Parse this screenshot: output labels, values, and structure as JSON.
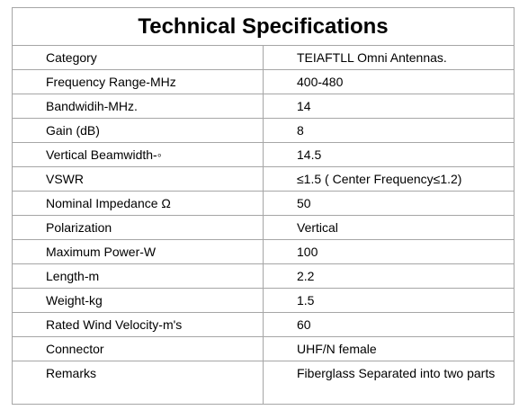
{
  "title": "Technical Specifications",
  "rows": [
    {
      "label": "Category",
      "value": "TEIAFTLL Omni Antennas."
    },
    {
      "label": "Frequency Range-MHz",
      "value": "400-480"
    },
    {
      "label": "Bandwidih-MHz.",
      "value": "14"
    },
    {
      "label": "Gain (dB)",
      "value": "8"
    },
    {
      "label": "Vertical Beamwidth-◦",
      "value": "14.5"
    },
    {
      "label": "VSWR",
      "value": "≤1.5 ( Center Frequency≤1.2)"
    },
    {
      "label": "Nominal Impedance Ω",
      "value": "50"
    },
    {
      "label": "Polarization",
      "value": "Vertical"
    },
    {
      "label": "Maximum Power-W",
      "value": "100"
    },
    {
      "label": "Length-m",
      "value": "2.2"
    },
    {
      "label": "Weight-kg",
      "value": "1.5"
    },
    {
      "label": "Rated Wind Velocity-m's",
      "value": "60"
    },
    {
      "label": "Connector",
      "value": "UHF/N female"
    },
    {
      "label": "Remarks",
      "value": "Fiberglass Separated into two parts"
    }
  ]
}
